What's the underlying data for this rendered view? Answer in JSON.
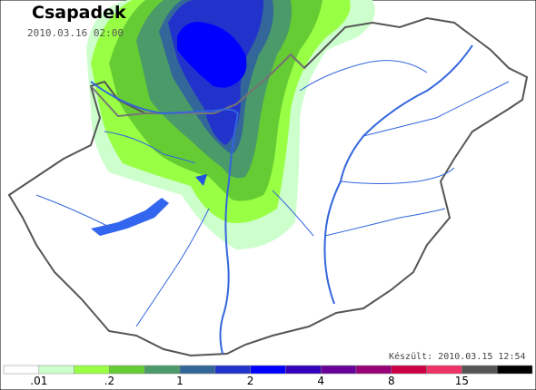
{
  "header": {
    "title": "Csapadek",
    "valid_time": "2010.03.16 02:00",
    "made": "Készült: 2010.03.15 12:54"
  },
  "legend": {
    "colors": [
      "#ffffff",
      "#ccffcc",
      "#99ff44",
      "#66cc33",
      "#4a9a6a",
      "#336699",
      "#2233cc",
      "#0000ff",
      "#3300bb",
      "#660099",
      "#990077",
      "#cc0044",
      "#ee3366",
      "#555555",
      "#000000"
    ],
    "ticks": [
      ".01",
      ".2",
      "1",
      "2",
      "4",
      "8",
      "15"
    ]
  }
}
